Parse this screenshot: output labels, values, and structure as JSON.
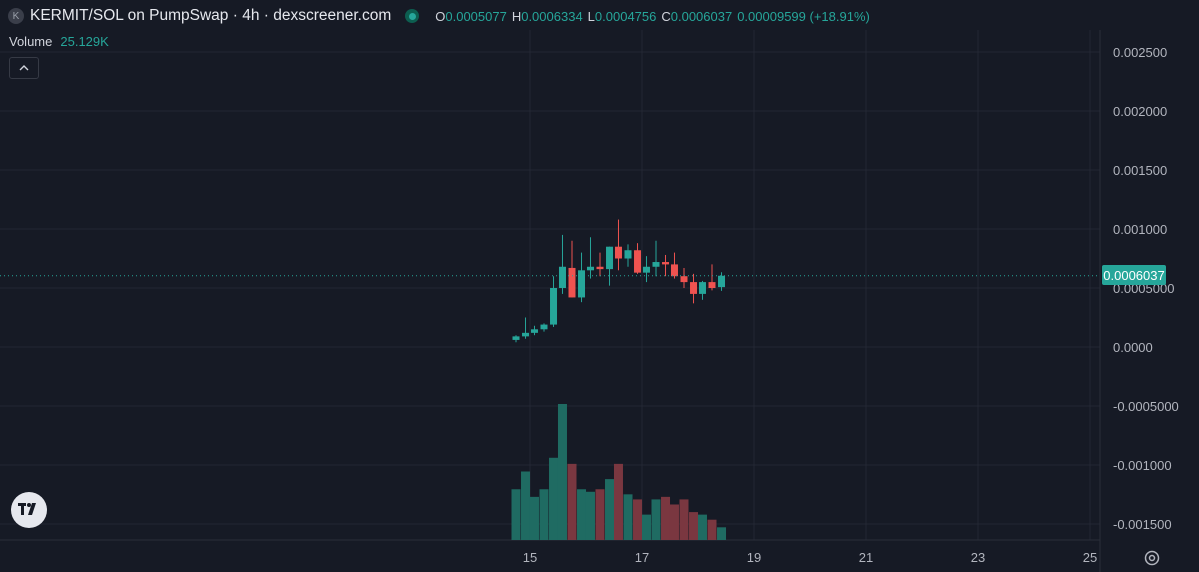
{
  "header": {
    "logo_letter": "K",
    "title": "KERMIT/SOL on PumpSwap · 4h · dexscreener.com",
    "o_label": "O",
    "o_value": "0.0005077",
    "h_label": "H",
    "h_value": "0.0006334",
    "l_label": "L",
    "l_value": "0.0004756",
    "c_label": "C",
    "c_value": "0.0006037",
    "change": "0.00009599 (+18.91%)"
  },
  "volume": {
    "label": "Volume",
    "value": "25.129K"
  },
  "last_price_label": "0.0006037",
  "colors": {
    "up": "#26a69a",
    "down": "#ef5350",
    "vol_up": "#1f6b62",
    "vol_down": "#7a3740",
    "background": "#161a25",
    "grid": "#232734"
  },
  "chart_data": {
    "type": "candlestick",
    "y_ticks": [
      "0.002500",
      "0.002000",
      "0.001500",
      "0.001000",
      "0.0005000",
      "0.0000",
      "-0.0005000",
      "-0.001000",
      "-0.001500"
    ],
    "y_tick_values": [
      0.0025,
      0.002,
      0.0015,
      0.001,
      0.0005,
      0.0,
      -0.0005,
      -0.001,
      -0.0015
    ],
    "x_ticks": [
      "15",
      "17",
      "19",
      "21",
      "23",
      "25"
    ],
    "x_tick_values": [
      15,
      17,
      19,
      21,
      23,
      25
    ],
    "last_price": 0.0006037,
    "candles": [
      {
        "t": 14.75,
        "o": 6e-05,
        "h": 0.0001,
        "l": 4e-05,
        "c": 9e-05
      },
      {
        "t": 14.92,
        "o": 9e-05,
        "h": 0.00025,
        "l": 7e-05,
        "c": 0.00012
      },
      {
        "t": 15.08,
        "o": 0.00012,
        "h": 0.00018,
        "l": 0.0001,
        "c": 0.00015
      },
      {
        "t": 15.25,
        "o": 0.00015,
        "h": 0.0002,
        "l": 0.00013,
        "c": 0.00019
      },
      {
        "t": 15.42,
        "o": 0.00019,
        "h": 0.0006,
        "l": 0.00017,
        "c": 0.0005
      },
      {
        "t": 15.58,
        "o": 0.0005,
        "h": 0.00095,
        "l": 0.00045,
        "c": 0.00068
      },
      {
        "t": 15.75,
        "o": 0.00067,
        "h": 0.0009,
        "l": 0.00042,
        "c": 0.00042
      },
      {
        "t": 15.92,
        "o": 0.00042,
        "h": 0.0008,
        "l": 0.00038,
        "c": 0.00065
      },
      {
        "t": 16.08,
        "o": 0.00065,
        "h": 0.00093,
        "l": 0.00058,
        "c": 0.00068
      },
      {
        "t": 16.25,
        "o": 0.00068,
        "h": 0.0008,
        "l": 0.0006,
        "c": 0.00066
      },
      {
        "t": 16.42,
        "o": 0.00066,
        "h": 0.00085,
        "l": 0.00052,
        "c": 0.00085
      },
      {
        "t": 16.58,
        "o": 0.00085,
        "h": 0.00108,
        "l": 0.00065,
        "c": 0.00075
      },
      {
        "t": 16.75,
        "o": 0.00075,
        "h": 0.00087,
        "l": 0.00068,
        "c": 0.00082
      },
      {
        "t": 16.92,
        "o": 0.00082,
        "h": 0.00088,
        "l": 0.00062,
        "c": 0.00063
      },
      {
        "t": 17.08,
        "o": 0.00063,
        "h": 0.00077,
        "l": 0.00055,
        "c": 0.00068
      },
      {
        "t": 17.25,
        "o": 0.00068,
        "h": 0.0009,
        "l": 0.0006,
        "c": 0.00072
      },
      {
        "t": 17.42,
        "o": 0.00072,
        "h": 0.00078,
        "l": 0.0006,
        "c": 0.0007
      },
      {
        "t": 17.58,
        "o": 0.0007,
        "h": 0.0008,
        "l": 0.00058,
        "c": 0.0006
      },
      {
        "t": 17.75,
        "o": 0.0006,
        "h": 0.00067,
        "l": 0.0005,
        "c": 0.00055
      },
      {
        "t": 17.92,
        "o": 0.00055,
        "h": 0.00062,
        "l": 0.00037,
        "c": 0.00045
      },
      {
        "t": 18.08,
        "o": 0.00045,
        "h": 0.00056,
        "l": 0.0004,
        "c": 0.00055
      },
      {
        "t": 18.25,
        "o": 0.00055,
        "h": 0.0007,
        "l": 0.00048,
        "c": 0.0005
      },
      {
        "t": 18.42,
        "o": 0.0005077,
        "h": 0.0006334,
        "l": 0.0004756,
        "c": 0.0006037
      }
    ],
    "volumes": [
      100,
      135,
      85,
      100,
      162,
      268,
      150,
      100,
      95,
      100,
      120,
      150,
      90,
      80,
      50,
      80,
      85,
      70,
      80,
      55,
      50,
      40,
      25
    ]
  }
}
